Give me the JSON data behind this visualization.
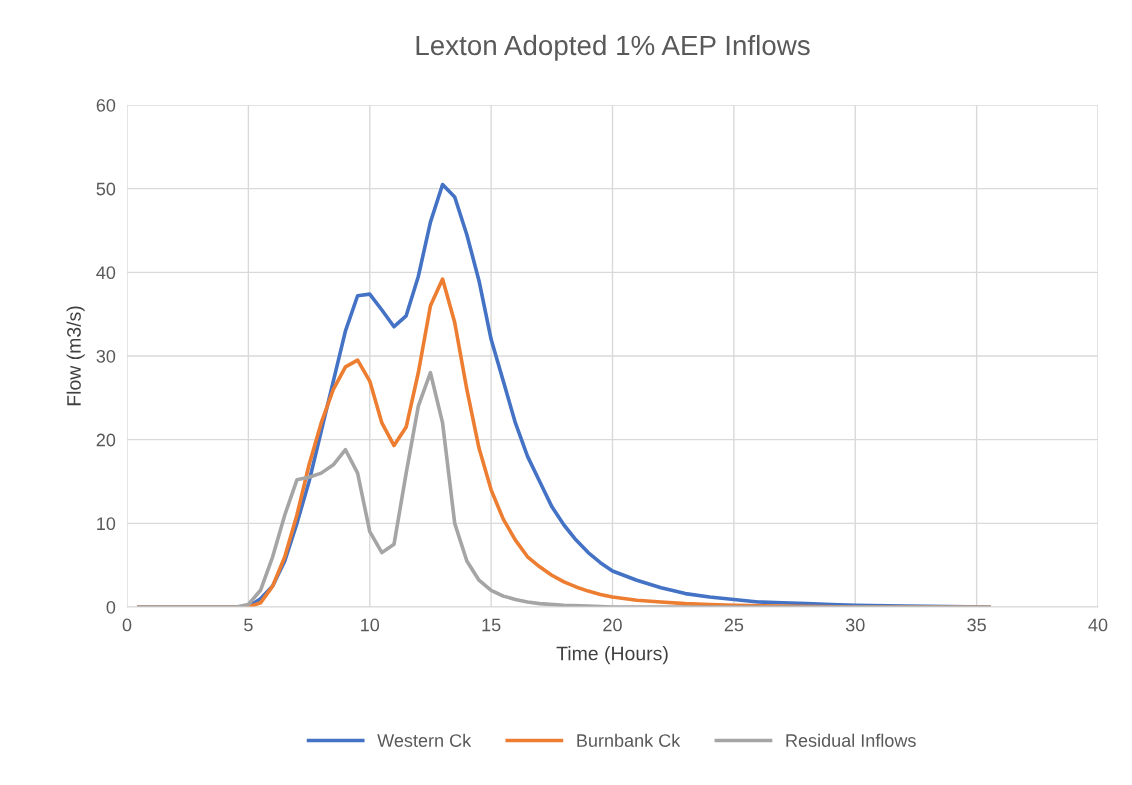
{
  "chart_data": {
    "type": "line",
    "title": "Lexton Adopted 1% AEP Inflows",
    "xlabel": "Time (Hours)",
    "ylabel": "Flow (m3/s)",
    "xlim": [
      0,
      40
    ],
    "xticks": [
      0,
      5,
      10,
      15,
      20,
      25,
      30,
      35,
      40
    ],
    "ylim": [
      0,
      60
    ],
    "yticks": [
      0,
      10,
      20,
      30,
      40,
      50,
      60
    ],
    "grid": true,
    "legend": "bottom",
    "marker": "none",
    "line_style": "solid",
    "series": [
      {
        "name": "Western Ck",
        "color": "#4472c4",
        "x": [
          0.5,
          5,
          5.5,
          6,
          6.5,
          7,
          7.5,
          8,
          8.5,
          9,
          9.5,
          10,
          10.5,
          11,
          11.5,
          12,
          12.5,
          13,
          13.5,
          14,
          14.5,
          15,
          15.5,
          16,
          16.5,
          17,
          17.5,
          18,
          18.5,
          19,
          19.5,
          20,
          21,
          22,
          23,
          24,
          25,
          26,
          27,
          28,
          29,
          30,
          32,
          35.5
        ],
        "values": [
          0,
          0,
          1,
          2.5,
          5.5,
          10,
          15,
          21,
          27,
          33,
          37.2,
          37.4,
          35.5,
          33.5,
          34.8,
          39.5,
          46,
          50.5,
          49,
          44.5,
          39,
          32,
          27,
          22,
          18,
          15,
          12,
          9.8,
          8,
          6.5,
          5.3,
          4.3,
          3.2,
          2.3,
          1.6,
          1.2,
          0.9,
          0.6,
          0.5,
          0.4,
          0.3,
          0.2,
          0.1,
          0
        ]
      },
      {
        "name": "Burnbank Ck",
        "color": "#ed7d31",
        "x": [
          0.5,
          5,
          5.5,
          6,
          6.5,
          7,
          7.5,
          8,
          8.5,
          9,
          9.5,
          10,
          10.5,
          11,
          11.5,
          12,
          12.5,
          13,
          13.5,
          14,
          14.5,
          15,
          15.5,
          16,
          16.5,
          17,
          17.5,
          18,
          18.5,
          19,
          19.5,
          20,
          21,
          22,
          23,
          24,
          25,
          27,
          30,
          35.5
        ],
        "values": [
          0,
          0,
          0.5,
          2.5,
          6,
          11,
          17,
          22,
          26,
          28.7,
          29.5,
          27,
          22,
          19.3,
          21.5,
          28,
          36,
          39.2,
          34,
          26,
          19,
          14,
          10.5,
          8,
          6,
          4.8,
          3.8,
          3,
          2.4,
          1.9,
          1.5,
          1.2,
          0.8,
          0.6,
          0.4,
          0.3,
          0.2,
          0.1,
          0,
          0
        ]
      },
      {
        "name": "Residual Inflows",
        "color": "#a5a5a5",
        "x": [
          0.5,
          4.5,
          5,
          5.5,
          6,
          6.5,
          7,
          7.5,
          8,
          8.5,
          9,
          9.5,
          10,
          10.5,
          11,
          11.5,
          12,
          12.5,
          13,
          13.5,
          14,
          14.5,
          15,
          15.5,
          16,
          16.5,
          17,
          18,
          19,
          20,
          35.5
        ],
        "values": [
          0,
          0,
          0.3,
          2,
          6,
          11,
          15.2,
          15.5,
          16,
          17,
          18.8,
          16,
          9,
          6.5,
          7.5,
          16,
          24,
          28,
          22,
          10,
          5.5,
          3.2,
          2,
          1.3,
          0.9,
          0.6,
          0.4,
          0.2,
          0.1,
          0,
          0
        ]
      }
    ]
  }
}
